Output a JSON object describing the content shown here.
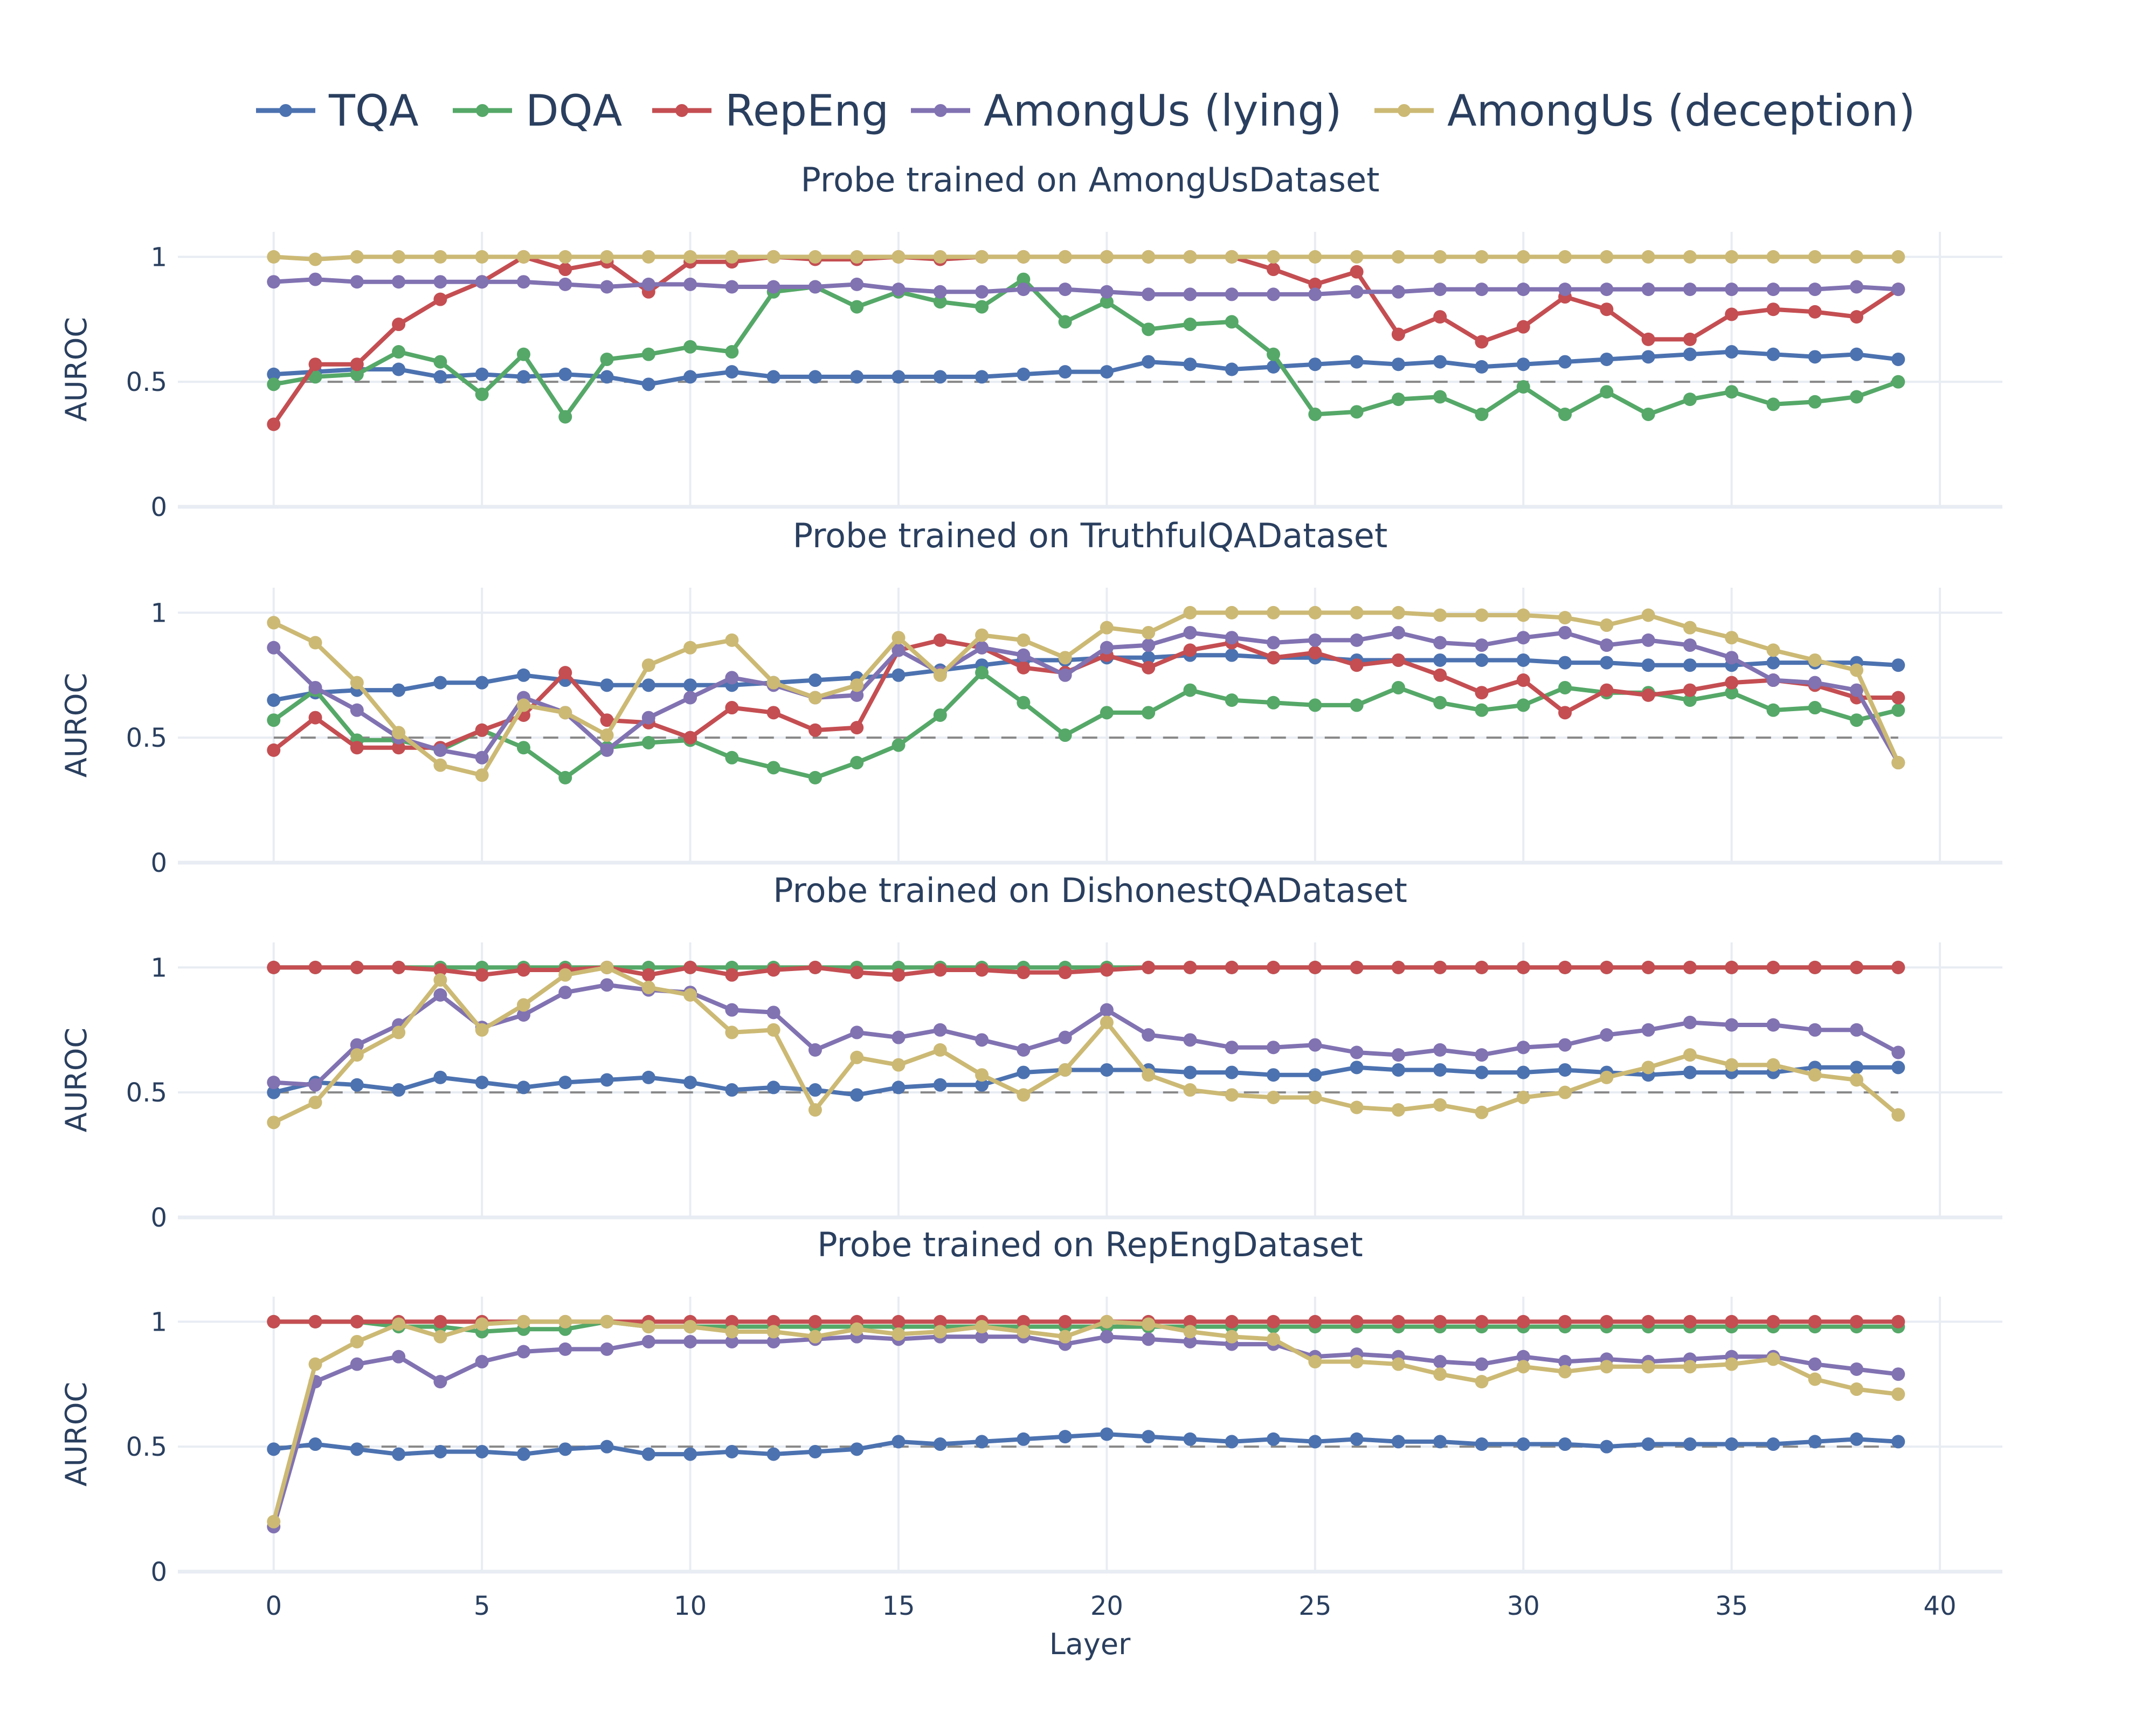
{
  "chart_data": {
    "type": "line",
    "legend_position": "top-center",
    "colors": {
      "TQA": "#4c72b0",
      "DQA": "#55a868",
      "RepEng": "#c44e52",
      "AmongUs (lying)": "#8172b2",
      "AmongUs (deception)": "#ccb974",
      "baseline": "#888888",
      "grid": "#e8ecf3",
      "text": "#2a3f5f"
    },
    "legend": [
      "TQA",
      "DQA",
      "RepEng",
      "AmongUs (lying)",
      "AmongUs (deception)"
    ],
    "xlabel": "Layer",
    "x_ticks": [
      0,
      5,
      10,
      15,
      20,
      25,
      30,
      35,
      40
    ],
    "xlim": [
      -2.3,
      41.5
    ],
    "ylim": [
      0,
      1.1
    ],
    "y_ticks": [
      0,
      0.5,
      1
    ],
    "baseline": 0.5,
    "grid": true,
    "panels": [
      {
        "title": "Probe trained on AmongUsDataset",
        "ylabel": "AUROC",
        "series": [
          {
            "name": "TQA",
            "values": [
              0.53,
              0.54,
              0.55,
              0.55,
              0.52,
              0.53,
              0.52,
              0.53,
              0.52,
              0.49,
              0.52,
              0.54,
              0.52,
              0.52,
              0.52,
              0.52,
              0.52,
              0.52,
              0.53,
              0.54,
              0.54,
              0.58,
              0.57,
              0.55,
              0.56,
              0.57,
              0.58,
              0.57,
              0.58,
              0.56,
              0.57,
              0.58,
              0.59,
              0.6,
              0.61,
              0.62,
              0.61,
              0.6,
              0.61,
              0.59
            ]
          },
          {
            "name": "DQA",
            "values": [
              0.49,
              0.52,
              0.53,
              0.62,
              0.58,
              0.45,
              0.61,
              0.36,
              0.59,
              0.61,
              0.64,
              0.62,
              0.86,
              0.88,
              0.8,
              0.86,
              0.82,
              0.8,
              0.91,
              0.74,
              0.82,
              0.71,
              0.73,
              0.74,
              0.61,
              0.37,
              0.38,
              0.43,
              0.44,
              0.37,
              0.48,
              0.37,
              0.46,
              0.37,
              0.43,
              0.46,
              0.41,
              0.42,
              0.44,
              0.5
            ]
          },
          {
            "name": "RepEng",
            "values": [
              0.33,
              0.57,
              0.57,
              0.73,
              0.83,
              0.9,
              1.0,
              0.95,
              0.98,
              0.86,
              0.98,
              0.98,
              1.0,
              0.99,
              0.99,
              1.0,
              0.99,
              1.0,
              1.0,
              1.0,
              1.0,
              1.0,
              1.0,
              1.0,
              0.95,
              0.89,
              0.94,
              0.69,
              0.76,
              0.66,
              0.72,
              0.84,
              0.79,
              0.67,
              0.67,
              0.77,
              0.79,
              0.78,
              0.76,
              0.87
            ]
          },
          {
            "name": "AmongUs (lying)",
            "values": [
              0.9,
              0.91,
              0.9,
              0.9,
              0.9,
              0.9,
              0.9,
              0.89,
              0.88,
              0.89,
              0.89,
              0.88,
              0.88,
              0.88,
              0.89,
              0.87,
              0.86,
              0.86,
              0.87,
              0.87,
              0.86,
              0.85,
              0.85,
              0.85,
              0.85,
              0.85,
              0.86,
              0.86,
              0.87,
              0.87,
              0.87,
              0.87,
              0.87,
              0.87,
              0.87,
              0.87,
              0.87,
              0.87,
              0.88,
              0.87
            ]
          },
          {
            "name": "AmongUs (deception)",
            "values": [
              1.0,
              0.99,
              1.0,
              1.0,
              1.0,
              1.0,
              1.0,
              1.0,
              1.0,
              1.0,
              1.0,
              1.0,
              1.0,
              1.0,
              1.0,
              1.0,
              1.0,
              1.0,
              1.0,
              1.0,
              1.0,
              1.0,
              1.0,
              1.0,
              1.0,
              1.0,
              1.0,
              1.0,
              1.0,
              1.0,
              1.0,
              1.0,
              1.0,
              1.0,
              1.0,
              1.0,
              1.0,
              1.0,
              1.0,
              1.0
            ]
          }
        ]
      },
      {
        "title": "Probe trained on TruthfulQADataset",
        "ylabel": "AUROC",
        "series": [
          {
            "name": "TQA",
            "values": [
              0.65,
              0.68,
              0.69,
              0.69,
              0.72,
              0.72,
              0.75,
              0.73,
              0.71,
              0.71,
              0.71,
              0.71,
              0.72,
              0.73,
              0.74,
              0.75,
              0.77,
              0.79,
              0.81,
              0.81,
              0.82,
              0.82,
              0.83,
              0.83,
              0.82,
              0.82,
              0.81,
              0.81,
              0.81,
              0.81,
              0.81,
              0.8,
              0.8,
              0.79,
              0.79,
              0.79,
              0.8,
              0.8,
              0.8,
              0.79
            ]
          },
          {
            "name": "DQA",
            "values": [
              0.57,
              0.69,
              0.49,
              0.49,
              0.45,
              0.53,
              0.46,
              0.34,
              0.46,
              0.48,
              0.49,
              0.42,
              0.38,
              0.34,
              0.4,
              0.47,
              0.59,
              0.76,
              0.64,
              0.51,
              0.6,
              0.6,
              0.69,
              0.65,
              0.64,
              0.63,
              0.63,
              0.7,
              0.64,
              0.61,
              0.63,
              0.7,
              0.68,
              0.68,
              0.65,
              0.68,
              0.61,
              0.62,
              0.57,
              0.61
            ]
          },
          {
            "name": "RepEng",
            "values": [
              0.45,
              0.58,
              0.46,
              0.46,
              0.46,
              0.53,
              0.59,
              0.76,
              0.57,
              0.56,
              0.5,
              0.62,
              0.6,
              0.53,
              0.54,
              0.85,
              0.89,
              0.86,
              0.78,
              0.76,
              0.83,
              0.78,
              0.85,
              0.88,
              0.82,
              0.84,
              0.79,
              0.81,
              0.75,
              0.68,
              0.73,
              0.6,
              0.69,
              0.67,
              0.69,
              0.72,
              0.73,
              0.71,
              0.66,
              0.66
            ]
          },
          {
            "name": "AmongUs (lying)",
            "values": [
              0.86,
              0.7,
              0.61,
              0.5,
              0.45,
              0.42,
              0.66,
              0.6,
              0.45,
              0.58,
              0.66,
              0.74,
              0.71,
              0.66,
              0.67,
              0.85,
              0.76,
              0.86,
              0.83,
              0.75,
              0.86,
              0.87,
              0.92,
              0.9,
              0.88,
              0.89,
              0.89,
              0.92,
              0.88,
              0.87,
              0.9,
              0.92,
              0.87,
              0.89,
              0.87,
              0.82,
              0.73,
              0.72,
              0.69,
              0.4
            ]
          },
          {
            "name": "AmongUs (deception)",
            "values": [
              0.96,
              0.88,
              0.72,
              0.52,
              0.39,
              0.35,
              0.63,
              0.6,
              0.51,
              0.79,
              0.86,
              0.89,
              0.72,
              0.66,
              0.71,
              0.9,
              0.75,
              0.91,
              0.89,
              0.82,
              0.94,
              0.92,
              1.0,
              1.0,
              1.0,
              1.0,
              1.0,
              1.0,
              0.99,
              0.99,
              0.99,
              0.98,
              0.95,
              0.99,
              0.94,
              0.9,
              0.85,
              0.81,
              0.77,
              0.4
            ]
          }
        ]
      },
      {
        "title": "Probe trained on DishonestQADataset",
        "ylabel": "AUROC",
        "series": [
          {
            "name": "TQA",
            "values": [
              0.5,
              0.54,
              0.53,
              0.51,
              0.56,
              0.54,
              0.52,
              0.54,
              0.55,
              0.56,
              0.54,
              0.51,
              0.52,
              0.51,
              0.49,
              0.52,
              0.53,
              0.53,
              0.58,
              0.59,
              0.59,
              0.59,
              0.58,
              0.58,
              0.57,
              0.57,
              0.6,
              0.59,
              0.59,
              0.58,
              0.58,
              0.59,
              0.58,
              0.57,
              0.58,
              0.58,
              0.58,
              0.6,
              0.6,
              0.6
            ]
          },
          {
            "name": "DQA",
            "values": [
              1.0,
              1.0,
              1.0,
              1.0,
              1.0,
              1.0,
              1.0,
              1.0,
              1.0,
              1.0,
              1.0,
              1.0,
              1.0,
              1.0,
              1.0,
              1.0,
              1.0,
              1.0,
              1.0,
              1.0,
              1.0,
              1.0,
              1.0,
              1.0,
              1.0,
              1.0,
              1.0,
              1.0,
              1.0,
              1.0,
              1.0,
              1.0,
              1.0,
              1.0,
              1.0,
              1.0,
              1.0,
              1.0,
              1.0,
              1.0
            ]
          },
          {
            "name": "RepEng",
            "values": [
              1.0,
              1.0,
              1.0,
              1.0,
              0.99,
              0.97,
              0.99,
              0.99,
              1.0,
              0.97,
              1.0,
              0.97,
              0.99,
              1.0,
              0.98,
              0.97,
              0.99,
              0.99,
              0.98,
              0.98,
              0.99,
              1.0,
              1.0,
              1.0,
              1.0,
              1.0,
              1.0,
              1.0,
              1.0,
              1.0,
              1.0,
              1.0,
              1.0,
              1.0,
              1.0,
              1.0,
              1.0,
              1.0,
              1.0,
              1.0
            ]
          },
          {
            "name": "AmongUs (lying)",
            "values": [
              0.54,
              0.53,
              0.69,
              0.77,
              0.89,
              0.76,
              0.81,
              0.9,
              0.93,
              0.91,
              0.9,
              0.83,
              0.82,
              0.67,
              0.74,
              0.72,
              0.75,
              0.71,
              0.67,
              0.72,
              0.83,
              0.73,
              0.71,
              0.68,
              0.68,
              0.69,
              0.66,
              0.65,
              0.67,
              0.65,
              0.68,
              0.69,
              0.73,
              0.75,
              0.78,
              0.77,
              0.77,
              0.75,
              0.75,
              0.66
            ]
          },
          {
            "name": "AmongUs (deception)",
            "values": [
              0.38,
              0.46,
              0.65,
              0.74,
              0.95,
              0.75,
              0.85,
              0.97,
              1.0,
              0.92,
              0.89,
              0.74,
              0.75,
              0.43,
              0.64,
              0.61,
              0.67,
              0.57,
              0.49,
              0.59,
              0.78,
              0.57,
              0.51,
              0.49,
              0.48,
              0.48,
              0.44,
              0.43,
              0.45,
              0.42,
              0.48,
              0.5,
              0.56,
              0.6,
              0.65,
              0.61,
              0.61,
              0.57,
              0.55,
              0.41
            ]
          }
        ]
      },
      {
        "title": "Probe trained on RepEngDataset",
        "ylabel": "AUROC",
        "series": [
          {
            "name": "TQA",
            "values": [
              0.49,
              0.51,
              0.49,
              0.47,
              0.48,
              0.48,
              0.47,
              0.49,
              0.5,
              0.47,
              0.47,
              0.48,
              0.47,
              0.48,
              0.49,
              0.52,
              0.51,
              0.52,
              0.53,
              0.54,
              0.55,
              0.54,
              0.53,
              0.52,
              0.53,
              0.52,
              0.53,
              0.52,
              0.52,
              0.51,
              0.51,
              0.51,
              0.5,
              0.51,
              0.51,
              0.51,
              0.51,
              0.52,
              0.53,
              0.52
            ]
          },
          {
            "name": "DQA",
            "values": [
              1.0,
              1.0,
              1.0,
              0.98,
              0.98,
              0.96,
              0.97,
              0.97,
              1.0,
              0.98,
              0.98,
              0.98,
              0.98,
              0.98,
              0.98,
              0.98,
              0.98,
              0.98,
              0.98,
              0.98,
              0.98,
              0.98,
              0.98,
              0.98,
              0.98,
              0.98,
              0.98,
              0.98,
              0.98,
              0.98,
              0.98,
              0.98,
              0.98,
              0.98,
              0.98,
              0.98,
              0.98,
              0.98,
              0.98,
              0.98
            ]
          },
          {
            "name": "RepEng",
            "values": [
              1.0,
              1.0,
              1.0,
              1.0,
              1.0,
              1.0,
              1.0,
              1.0,
              1.0,
              1.0,
              1.0,
              1.0,
              1.0,
              1.0,
              1.0,
              1.0,
              1.0,
              1.0,
              1.0,
              1.0,
              1.0,
              1.0,
              1.0,
              1.0,
              1.0,
              1.0,
              1.0,
              1.0,
              1.0,
              1.0,
              1.0,
              1.0,
              1.0,
              1.0,
              1.0,
              1.0,
              1.0,
              1.0,
              1.0,
              1.0
            ]
          },
          {
            "name": "AmongUs (lying)",
            "values": [
              0.18,
              0.76,
              0.83,
              0.86,
              0.76,
              0.84,
              0.88,
              0.89,
              0.89,
              0.92,
              0.92,
              0.92,
              0.92,
              0.93,
              0.94,
              0.93,
              0.94,
              0.94,
              0.94,
              0.91,
              0.94,
              0.93,
              0.92,
              0.91,
              0.91,
              0.86,
              0.87,
              0.86,
              0.84,
              0.83,
              0.86,
              0.84,
              0.85,
              0.84,
              0.85,
              0.86,
              0.86,
              0.83,
              0.81,
              0.79
            ]
          },
          {
            "name": "AmongUs (deception)",
            "values": [
              0.2,
              0.83,
              0.92,
              0.99,
              0.94,
              0.99,
              1.0,
              1.0,
              1.0,
              0.98,
              0.98,
              0.96,
              0.96,
              0.94,
              0.97,
              0.95,
              0.96,
              0.98,
              0.96,
              0.94,
              1.0,
              0.99,
              0.96,
              0.94,
              0.93,
              0.84,
              0.84,
              0.83,
              0.79,
              0.76,
              0.82,
              0.8,
              0.82,
              0.82,
              0.82,
              0.83,
              0.85,
              0.77,
              0.73,
              0.71
            ]
          }
        ]
      }
    ]
  }
}
